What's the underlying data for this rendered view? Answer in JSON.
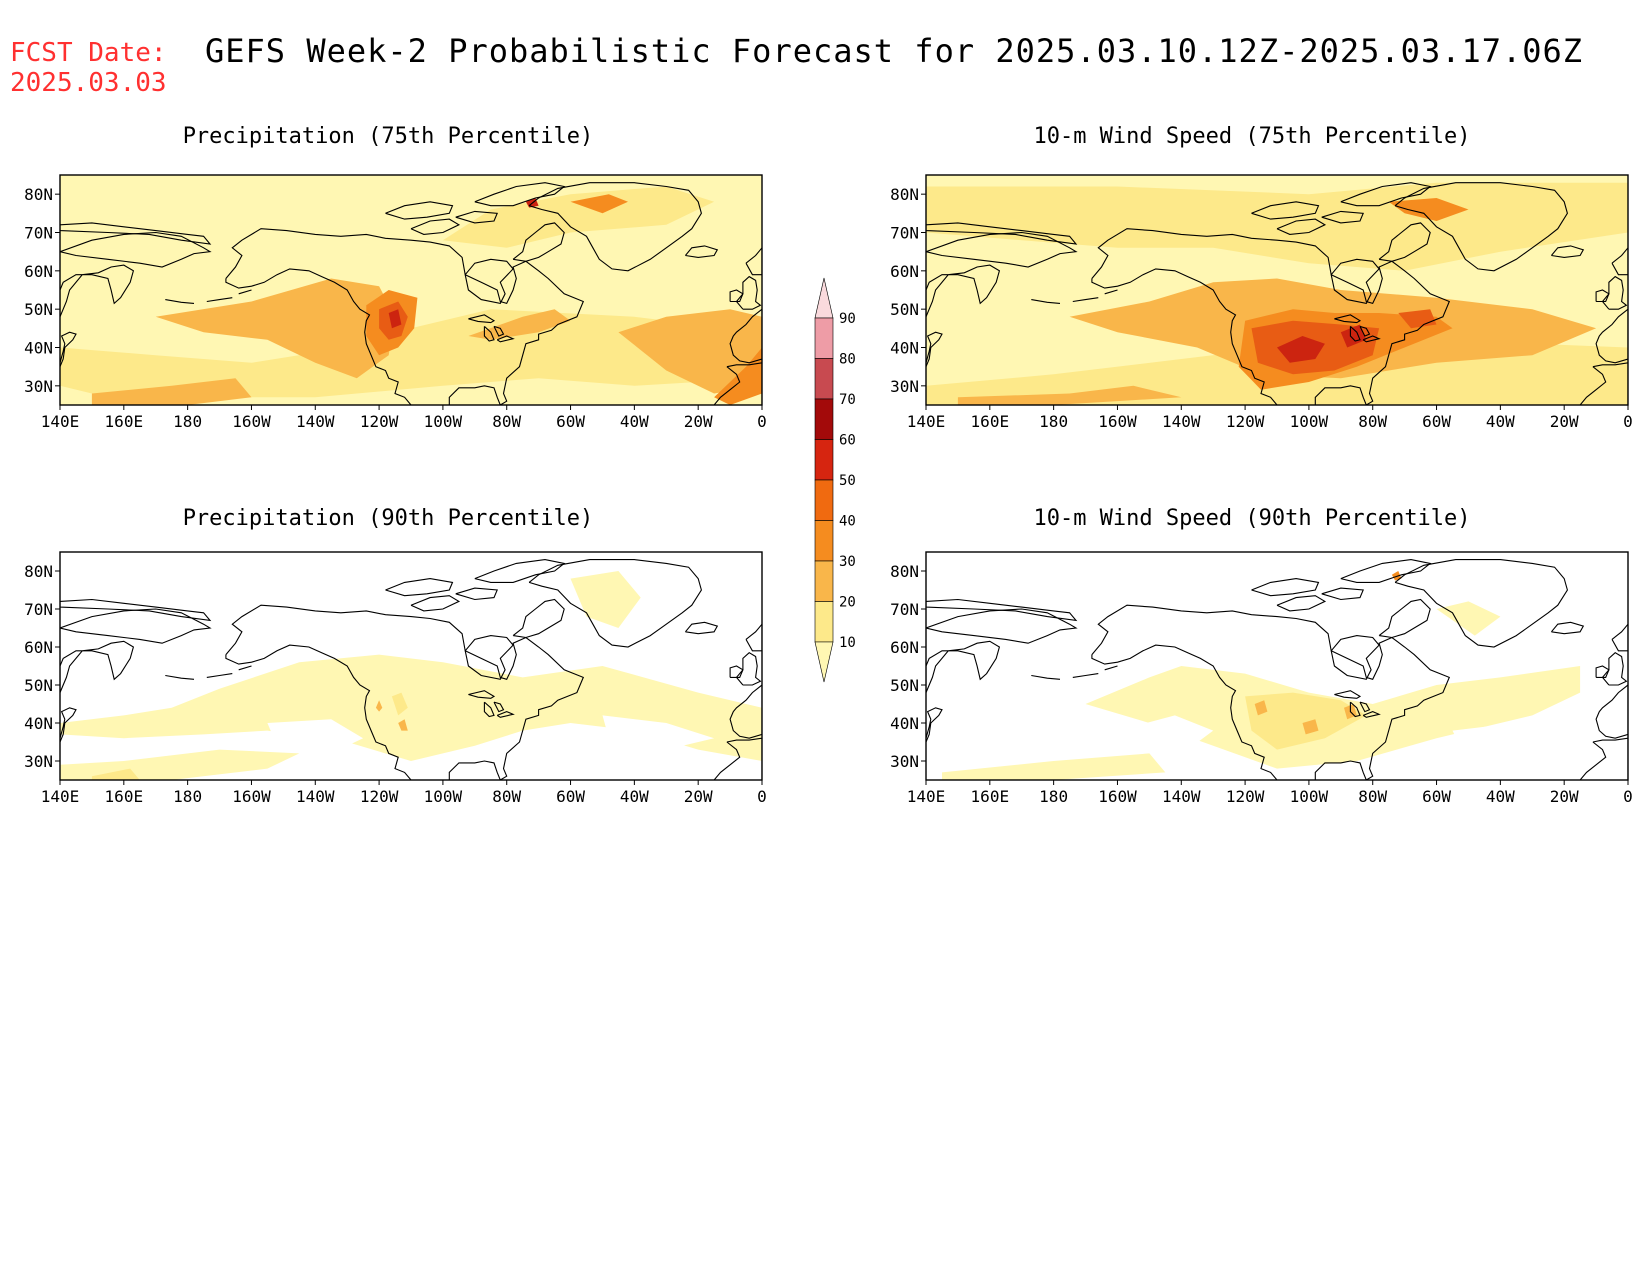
{
  "header": {
    "fcst_label": "FCST Date:",
    "fcst_date": "2025.03.03",
    "title": "GEFS Week-2 Probabilistic Forecast for 2025.03.10.12Z-2025.03.17.06Z"
  },
  "panels": [
    {
      "id": "precip-75",
      "title": "Precipitation (75th Percentile)"
    },
    {
      "id": "wind-75",
      "title": "10-m Wind Speed (75th Percentile)"
    },
    {
      "id": "precip-90",
      "title": "Precipitation (90th Percentile)"
    },
    {
      "id": "wind-90",
      "title": "10-m Wind Speed (90th Percentile)"
    }
  ],
  "axes": {
    "lon_labels": [
      "140E",
      "160E",
      "180",
      "160W",
      "140W",
      "120W",
      "100W",
      "80W",
      "60W",
      "40W",
      "20W",
      "0"
    ],
    "lat_labels": [
      "80N",
      "70N",
      "60N",
      "50N",
      "40N",
      "30N"
    ],
    "lon_range": [
      140,
      360
    ],
    "lat_range": [
      25,
      85
    ]
  },
  "colorbar": {
    "levels": [
      "10",
      "20",
      "30",
      "40",
      "50",
      "60",
      "70",
      "80",
      "90"
    ],
    "colors": [
      "#fff7b3",
      "#fde98a",
      "#f9b64a",
      "#f58c1f",
      "#f06a10",
      "#d62510",
      "#a30a0a",
      "#c84a50",
      "#ee9ca6",
      "#fadadd"
    ]
  },
  "colors": {
    "white": "#ffffff",
    "c10": "#fff7b3",
    "c20": "#fde98a",
    "c30": "#f9b64a",
    "c40": "#f58c1f",
    "c50": "#e85c14",
    "c60": "#cc2410",
    "title_red": "#ff3030"
  }
}
